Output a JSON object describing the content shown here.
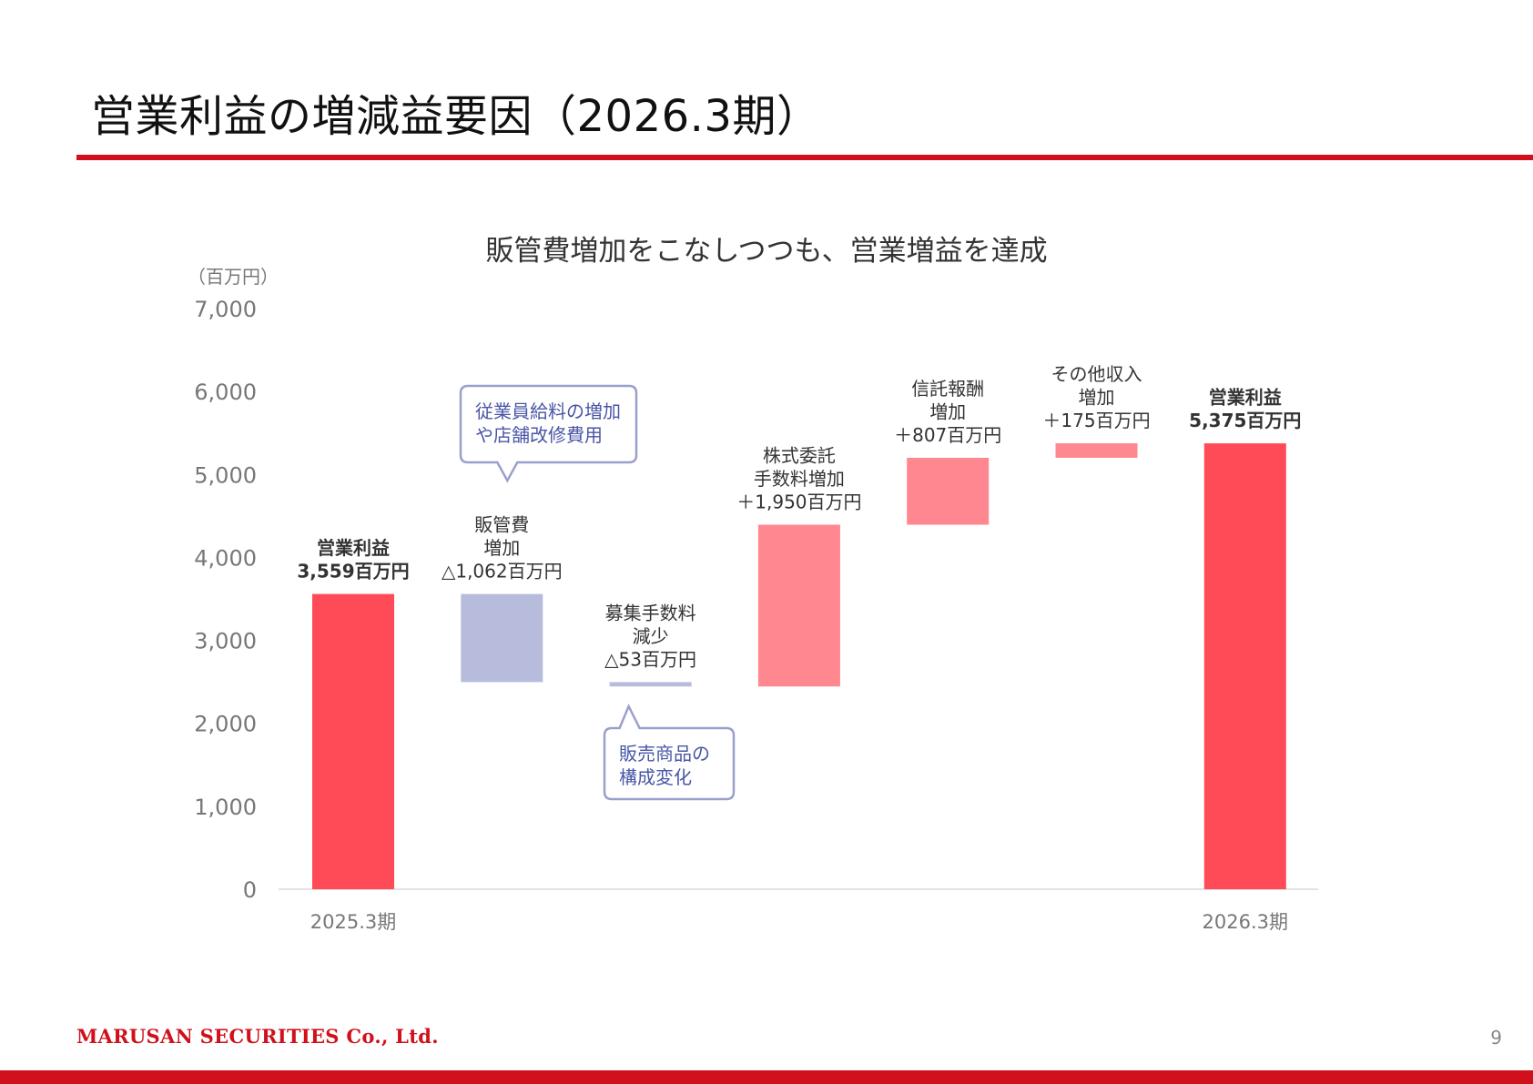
{
  "page": {
    "title": "営業利益の増減益要因（2026.3期）",
    "company": "MARUSAN SECURITIES Co., Ltd.",
    "page_number": "9"
  },
  "colors": {
    "brand_red": "#d0101b",
    "total_bar": "#ff4b57",
    "increase_bar": "#ff8790",
    "decrease_bar": "#b8bcdc",
    "callout_border": "#9aa0cc",
    "callout_text": "#4a56a6"
  },
  "chart_data": {
    "type": "bar",
    "subtype": "waterfall",
    "title": "販管費増加をこなしつつも、営業増益を達成",
    "unit_label": "（百万円）",
    "ylim": [
      0,
      7000
    ],
    "yticks": [
      0,
      1000,
      2000,
      3000,
      4000,
      5000,
      6000,
      7000
    ],
    "ytick_labels": [
      "0",
      "1,000",
      "2,000",
      "3,000",
      "4,000",
      "5,000",
      "6,000",
      "7,000"
    ],
    "grid": false,
    "legend": "none",
    "categories": [
      "2025.3期",
      "",
      "",
      "",
      "",
      "",
      "2026.3期"
    ],
    "steps": [
      {
        "kind": "total",
        "start": 0,
        "end": 3559,
        "value": 3559,
        "label": [
          "営業利益",
          "3,559百万円"
        ],
        "bold": true
      },
      {
        "kind": "decrease",
        "start": 3559,
        "end": 2497,
        "value": -1062,
        "label": [
          "販管費",
          "増加",
          "△1,062百万円"
        ],
        "bold": false
      },
      {
        "kind": "decrease",
        "start": 2497,
        "end": 2444,
        "value": -53,
        "label": [
          "募集手数料",
          "減少",
          "△53百万円"
        ],
        "bold": false
      },
      {
        "kind": "increase",
        "start": 2444,
        "end": 4394,
        "value": 1950,
        "label": [
          "株式委託",
          "手数料増加",
          "＋1,950百万円"
        ],
        "bold": false
      },
      {
        "kind": "increase",
        "start": 4394,
        "end": 5201,
        "value": 807,
        "label": [
          "信託報酬",
          "増加",
          "＋807百万円"
        ],
        "bold": false
      },
      {
        "kind": "increase",
        "start": 5201,
        "end": 5376,
        "value": 175,
        "label": [
          "その他収入",
          "増加",
          "＋175百万円"
        ],
        "bold": false
      },
      {
        "kind": "total",
        "start": 0,
        "end": 5375,
        "value": 5375,
        "label": [
          "営業利益",
          "5,375百万円"
        ],
        "bold": true
      }
    ],
    "annotations": [
      {
        "step": 1,
        "position": "above",
        "lines": [
          "従業員給料の増加",
          "や店舗改修費用"
        ]
      },
      {
        "step": 2,
        "position": "below",
        "lines": [
          "販売商品の",
          "構成変化"
        ]
      }
    ]
  }
}
